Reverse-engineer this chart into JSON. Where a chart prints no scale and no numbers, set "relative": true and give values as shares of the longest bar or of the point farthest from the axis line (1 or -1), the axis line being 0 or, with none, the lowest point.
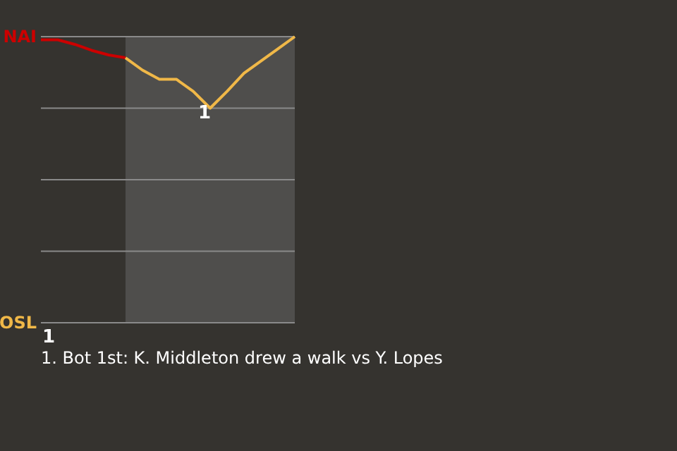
{
  "chart_data": {
    "type": "line",
    "relative": true,
    "categories": [
      null,
      null,
      null,
      null,
      null,
      null,
      null,
      null,
      null,
      null,
      null,
      null,
      null,
      null,
      null,
      null
    ],
    "series": [
      {
        "color": "#cc0000",
        "values": [
          0.989,
          0.989,
          0.973,
          0.952,
          0.936,
          0.926,
          null,
          null,
          null,
          null,
          null,
          null,
          null,
          null,
          null,
          null
        ]
      },
      {
        "color": "#f0b848",
        "values": [
          null,
          null,
          null,
          null,
          null,
          0.926,
          0.883,
          0.851,
          0.851,
          0.809,
          0.75,
          0.809,
          0.872,
          0.915,
          0.957,
          1
        ]
      }
    ],
    "grid": true,
    "annotations": [
      "NAI",
      "OSL",
      "1",
      {
        "text": "1",
        "y": 0.75
      },
      "1. Bot 1st: K. Middleton drew a walk vs Y. Lopes"
    ]
  }
}
